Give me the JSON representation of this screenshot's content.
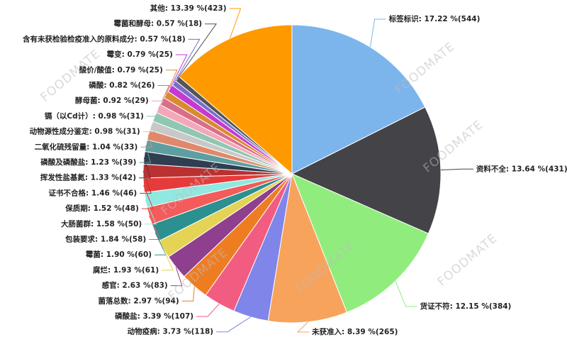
{
  "chart_data": {
    "type": "pie",
    "watermark": "FOODMATE",
    "categories": [
      "标签标识",
      "资料不全",
      "货证不符",
      "未获准入",
      "动物疫病",
      "磷酸盐",
      "菌落总数",
      "感官",
      "腐烂",
      "霉菌",
      "包装要求",
      "大肠菌群",
      "保质期",
      "证书不合格",
      "挥发性盐基氮",
      "磷酸及磷酸盐",
      "二氧化硫残留量",
      "动物源性成分鉴定",
      "镉（以Cd计）",
      "酵母菌",
      "磷酸",
      "酸价/酸值",
      "霉变",
      "含有未获检验检疫准入的原料成分",
      "霉菌和酵母",
      "其他"
    ],
    "values": [
      544,
      431,
      384,
      265,
      118,
      107,
      94,
      83,
      61,
      60,
      58,
      50,
      48,
      46,
      42,
      39,
      33,
      31,
      31,
      29,
      26,
      25,
      25,
      18,
      18,
      423
    ],
    "value_labels": [
      ": 17.22 %(544)",
      ": 13.64 %(431)",
      ": 12.15 %(384)",
      ": 8.39 %(265)",
      ": 3.73 %(118)",
      ": 3.39 %(107)",
      ": 2.97 %(94)",
      ": 2.63 %(83)",
      ": 1.93 %(61)",
      ": 1.90 %(60)",
      ": 1.84 %(58)",
      ": 1.58 %(50)",
      ": 1.52 %(48)",
      ": 1.46 %(46)",
      ": 1.33 %(42)",
      ": 1.23 %(39)",
      ": 1.04 %(33)",
      ": 0.98 %(31)",
      ": 0.98 %(31)",
      ": 0.92 %(29)",
      ": 0.82 %(26)",
      ": 0.79 %(25)",
      ": 0.79 %(25)",
      ": 0.57 %(18)",
      ": 0.57 %(18)",
      ": 13.39 %(423)"
    ],
    "colors": [
      "#7cb5ec",
      "#434348",
      "#90ed7d",
      "#f7a35c",
      "#8085e9",
      "#f15c80",
      "#ee7d22",
      "#8e3f8e",
      "#e4d354",
      "#2b908f",
      "#f45b5b",
      "#91e8e1",
      "#e63b3b",
      "#ba3131",
      "#2f3e50",
      "#5f9ea0",
      "#e0896a",
      "#c8c8c8",
      "#8fc7b2",
      "#f4a7b9",
      "#d86f8a",
      "#d88b2f",
      "#c43ad0",
      "#7a6fc9",
      "#555555",
      "#ff9900"
    ]
  }
}
